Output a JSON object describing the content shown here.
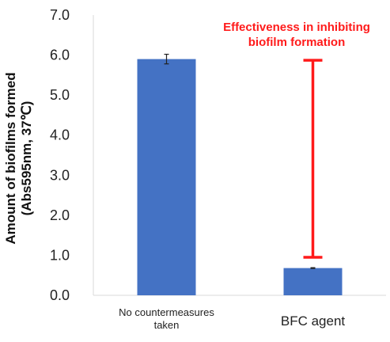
{
  "chart_data": {
    "type": "bar",
    "categories": [
      "No countermeasures taken",
      "BFC agent"
    ],
    "category_lines": [
      [
        "No countermeasures",
        "taken"
      ],
      [
        "BFC agent"
      ]
    ],
    "values": [
      5.9,
      0.68
    ],
    "error": [
      0.12,
      0.01
    ],
    "ylabel_lines": [
      "Amount of biofilms formed",
      "(Abs595nm, 37℃)"
    ],
    "ylim": [
      0,
      7
    ],
    "yticks": [
      "0.0",
      "1.0",
      "2.0",
      "3.0",
      "4.0",
      "5.0",
      "6.0",
      "7.0"
    ],
    "grid": false,
    "bar_color": "#4472c4",
    "annotation": {
      "lines": [
        "Effectiveness in inhibiting",
        "biofilm formation"
      ],
      "from": 0.95,
      "to": 5.87,
      "color": "#ff1a1a"
    }
  }
}
